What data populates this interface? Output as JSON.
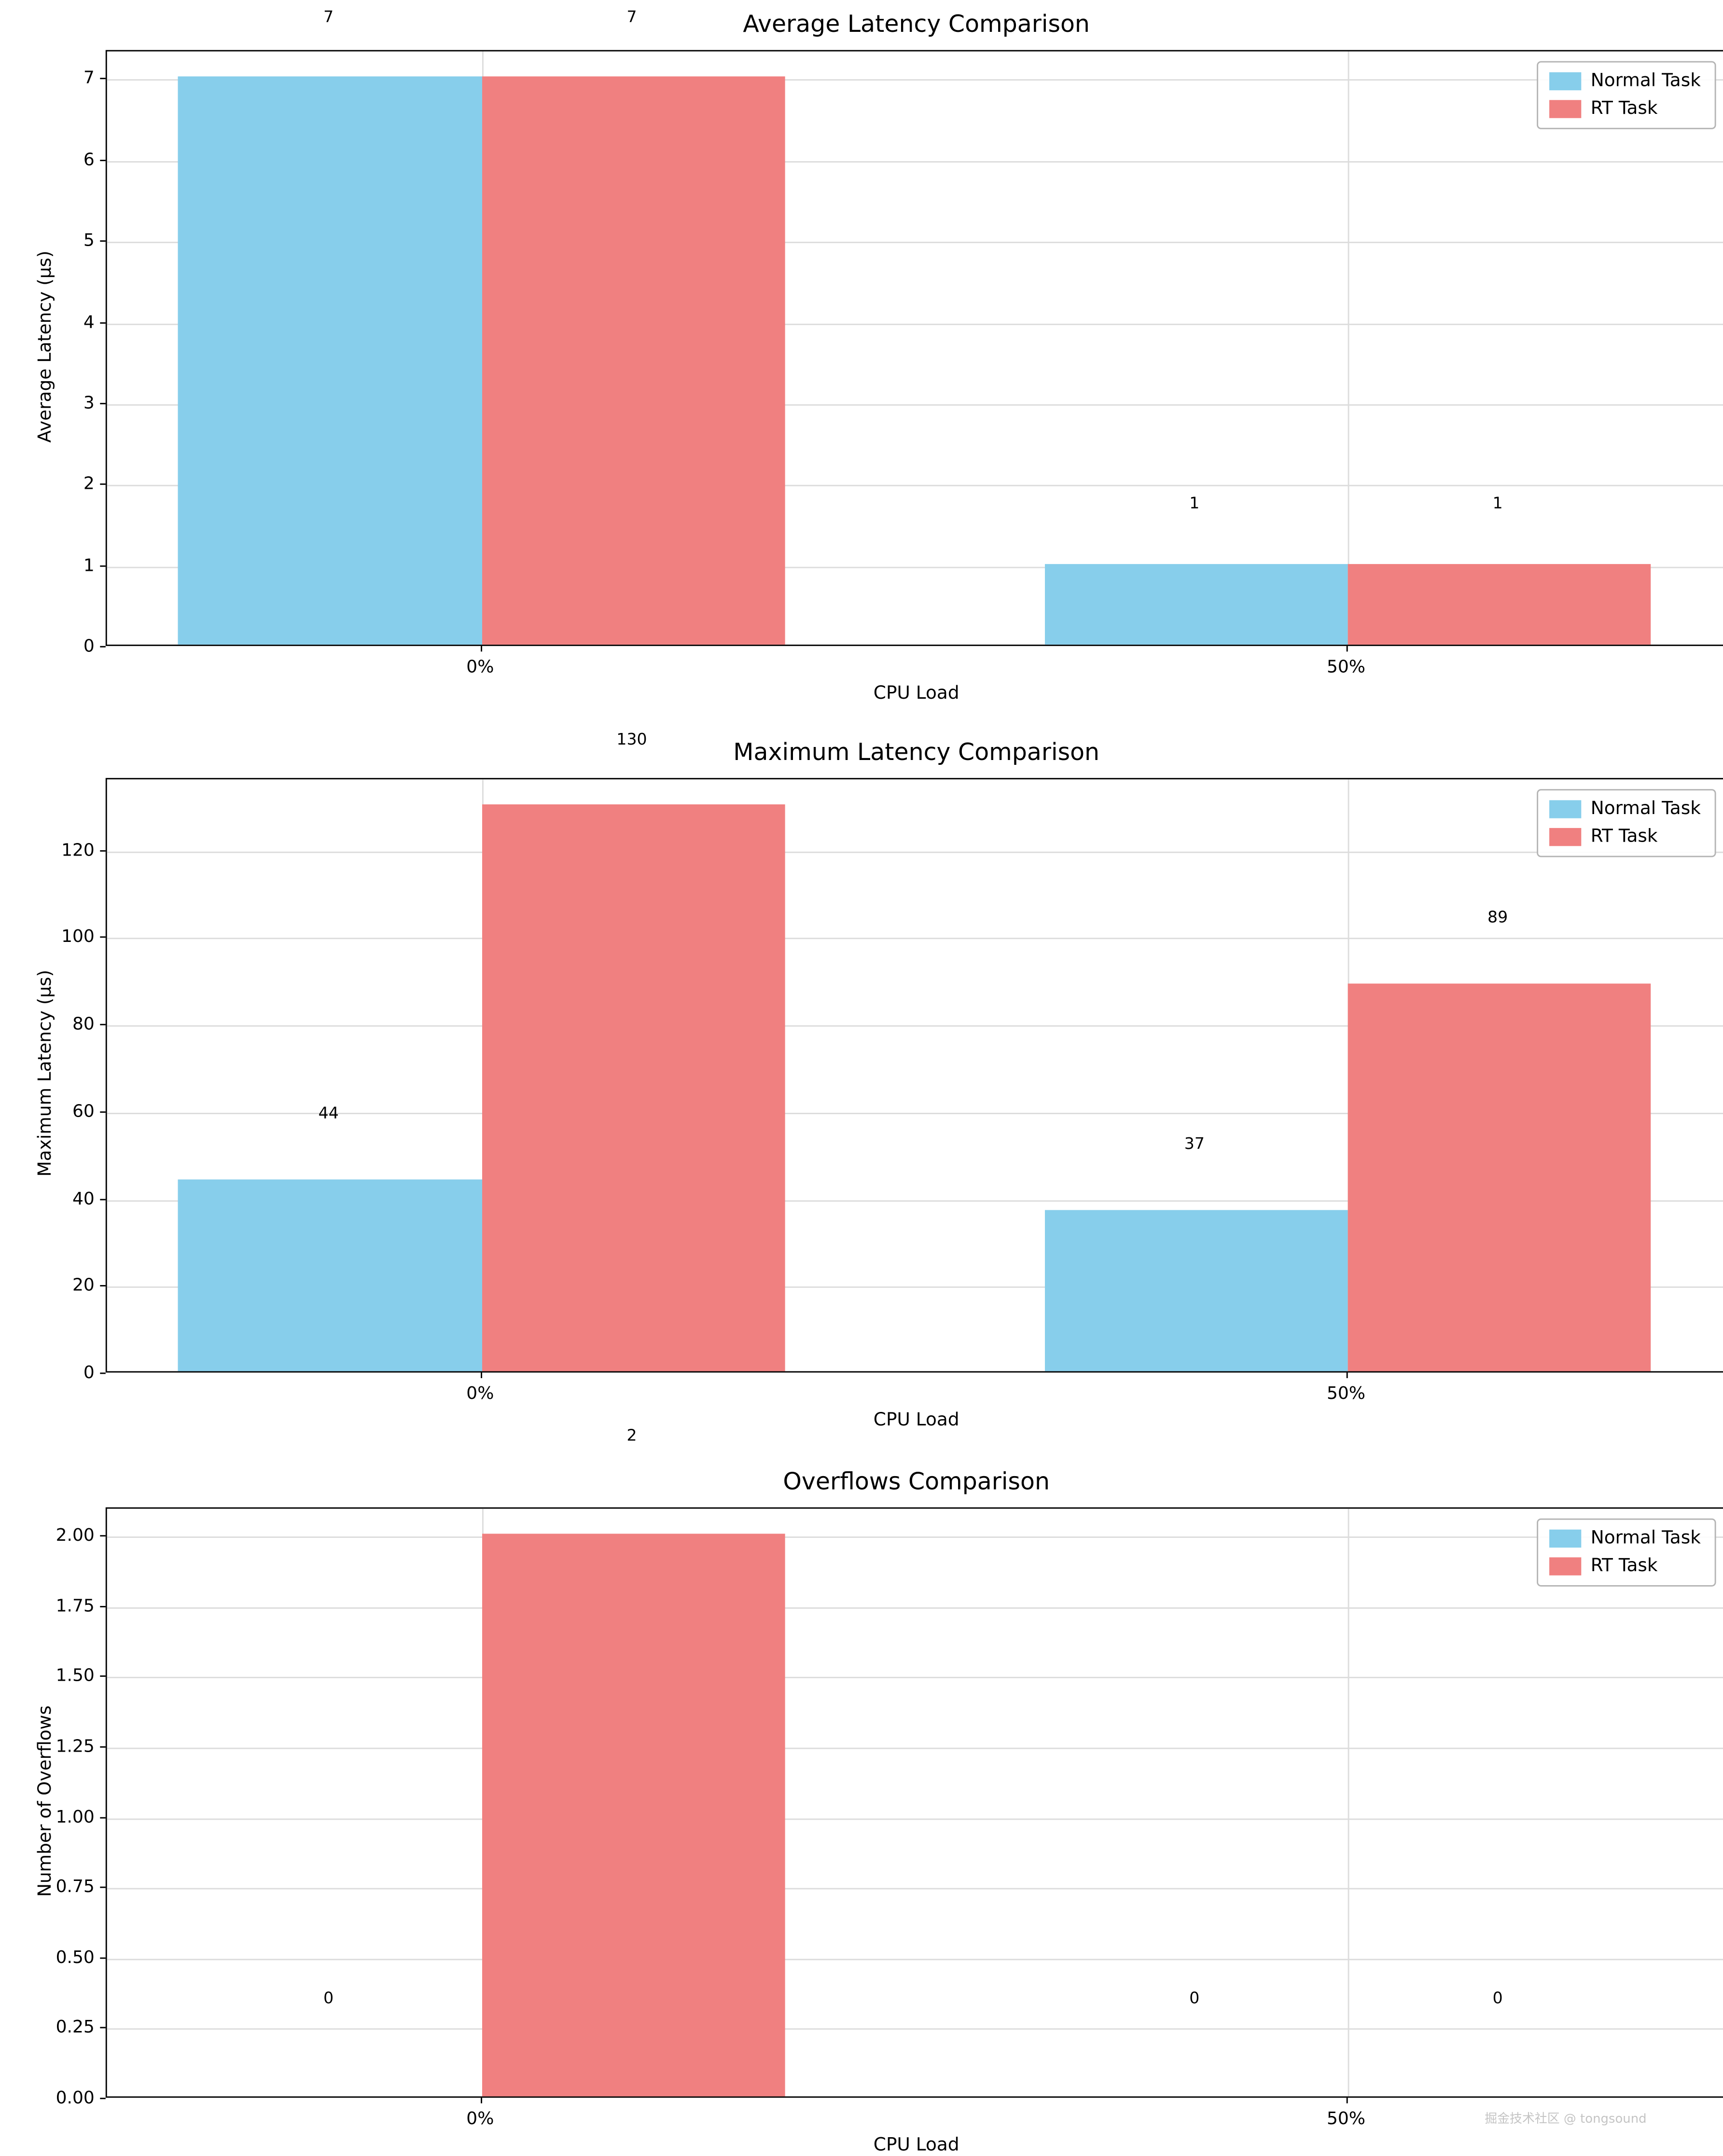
{
  "figure": {
    "watermark": "掘金技术社区 @ tongsound"
  },
  "chart_data": [
    {
      "type": "bar",
      "title": "Average Latency Comparison",
      "xlabel": "CPU Load",
      "ylabel": "Average Latency (μs)",
      "categories": [
        "0%",
        "50%"
      ],
      "series": [
        {
          "name": "Normal Task",
          "color": "#87CEEB",
          "values": [
            7,
            1
          ]
        },
        {
          "name": "RT Task",
          "color": "#F08080",
          "values": [
            7,
            1
          ]
        }
      ],
      "value_labels": [
        [
          "7",
          "1"
        ],
        [
          "7",
          "1"
        ]
      ],
      "ylim": [
        0,
        7.35
      ],
      "yticks": [
        0,
        1,
        2,
        3,
        4,
        5,
        6,
        7
      ],
      "ytick_labels": [
        "0",
        "1",
        "2",
        "3",
        "4",
        "5",
        "6",
        "7"
      ],
      "legend_position": "upper right",
      "grid": true
    },
    {
      "type": "bar",
      "title": "Maximum Latency Comparison",
      "xlabel": "CPU Load",
      "ylabel": "Maximum Latency (μs)",
      "categories": [
        "0%",
        "50%"
      ],
      "series": [
        {
          "name": "Normal Task",
          "color": "#87CEEB",
          "values": [
            44,
            37
          ]
        },
        {
          "name": "RT Task",
          "color": "#F08080",
          "values": [
            130,
            89
          ]
        }
      ],
      "value_labels": [
        [
          "44",
          "37"
        ],
        [
          "130",
          "89"
        ]
      ],
      "ylim": [
        0,
        136.5
      ],
      "yticks": [
        0,
        20,
        40,
        60,
        80,
        100,
        120
      ],
      "ytick_labels": [
        "0",
        "20",
        "40",
        "60",
        "80",
        "100",
        "120"
      ],
      "legend_position": "upper right",
      "grid": true
    },
    {
      "type": "bar",
      "title": "Overflows Comparison",
      "xlabel": "CPU Load",
      "ylabel": "Number of Overflows",
      "categories": [
        "0%",
        "50%"
      ],
      "series": [
        {
          "name": "Normal Task",
          "color": "#87CEEB",
          "values": [
            0,
            0
          ]
        },
        {
          "name": "RT Task",
          "color": "#F08080",
          "values": [
            2,
            0
          ]
        }
      ],
      "value_labels": [
        [
          "0",
          "0"
        ],
        [
          "2",
          "0"
        ]
      ],
      "ylim": [
        0,
        2.1
      ],
      "yticks": [
        0,
        0.25,
        0.5,
        0.75,
        1.0,
        1.25,
        1.5,
        1.75,
        2.0
      ],
      "ytick_labels": [
        "0.00",
        "0.25",
        "0.50",
        "0.75",
        "1.00",
        "1.25",
        "1.50",
        "1.75",
        "2.00"
      ],
      "legend_position": "upper right",
      "grid": true
    }
  ]
}
